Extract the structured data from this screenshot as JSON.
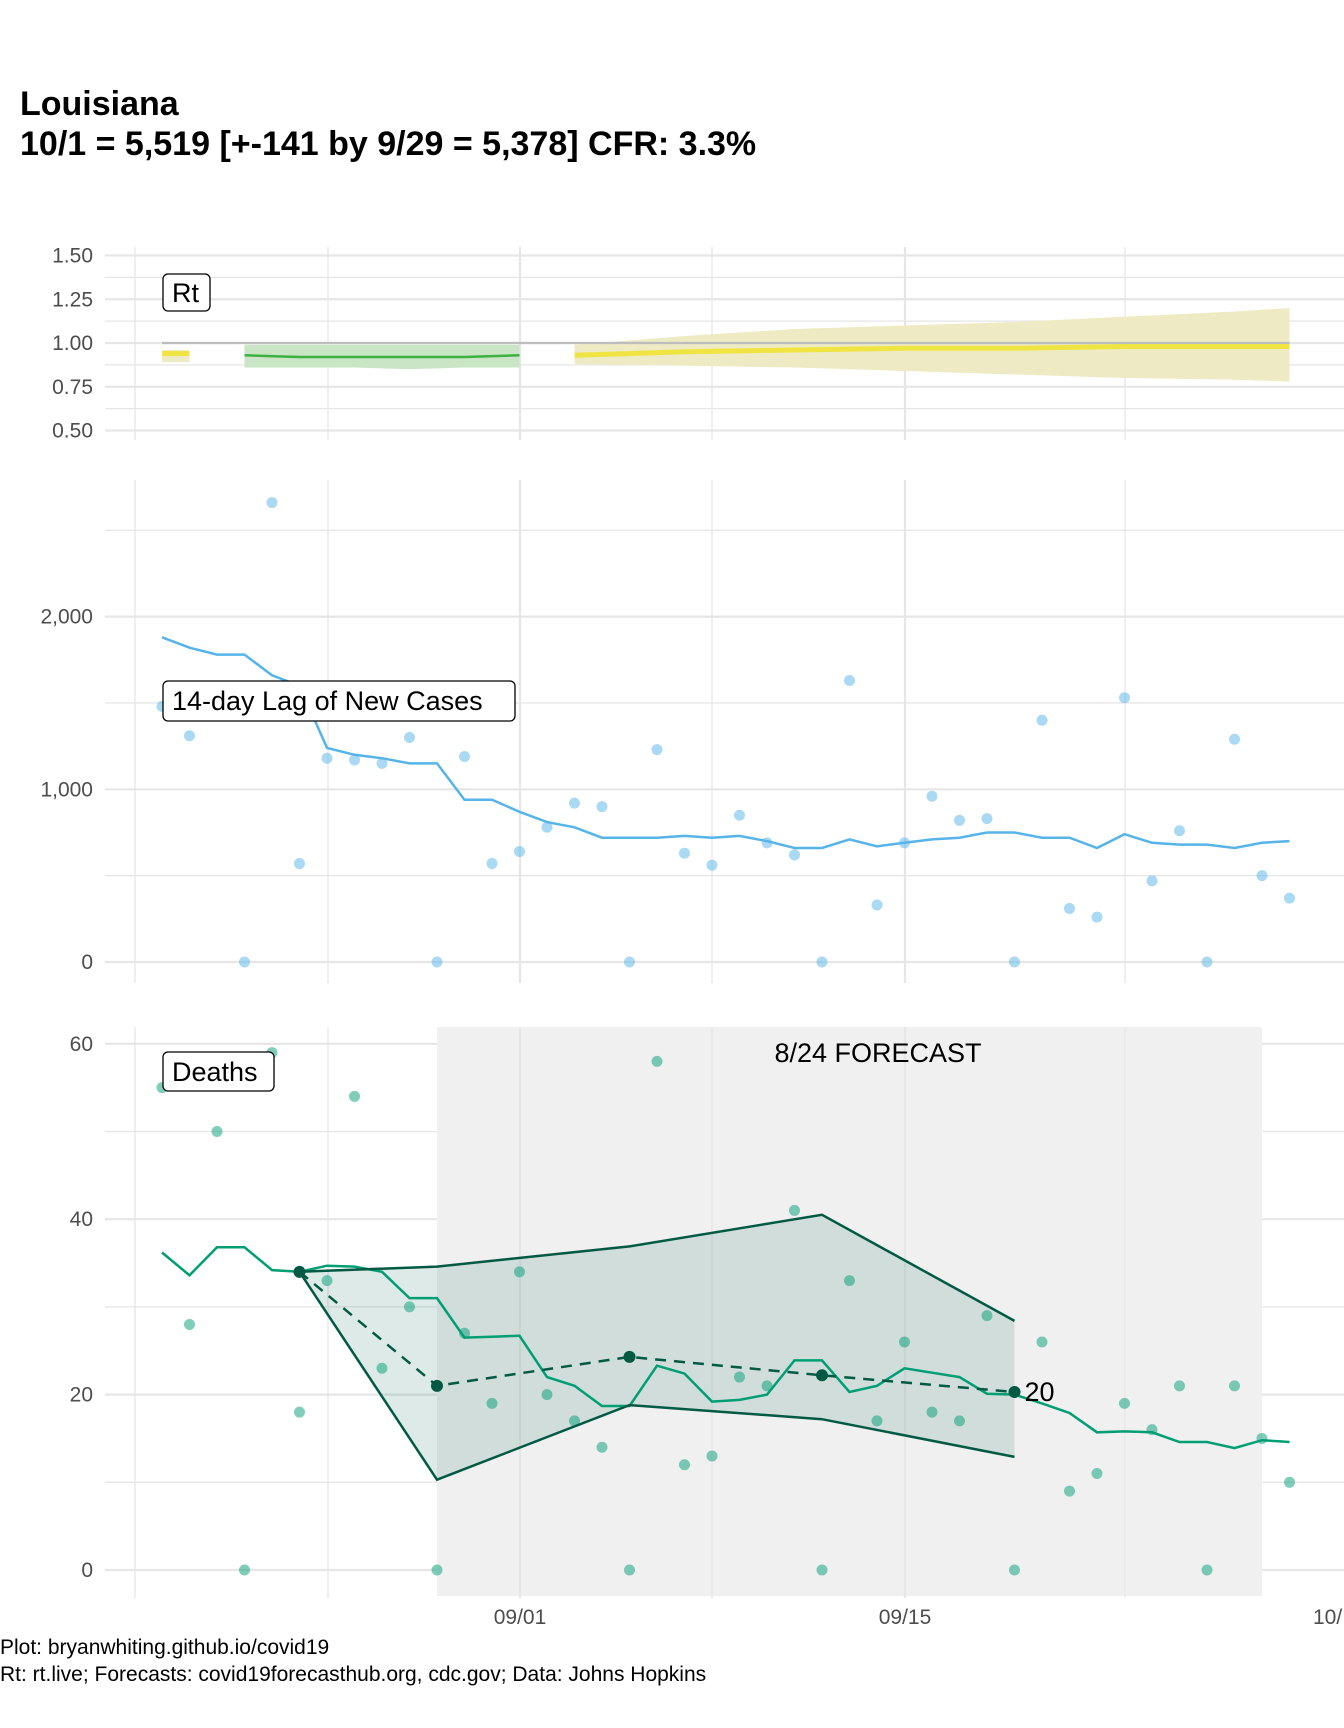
{
  "title_line1": "Louisiana",
  "title_line2": "10/1 = 5,519 [+-141 by 9/29 = 5,378] CFR: 3.3%",
  "caption_line1": "Plot: bryanwhiting.github.io/covid19",
  "caption_line2": "Rt: rt.live; Forecasts: covid19forecasthub.org, cdc.gov; Data: Johns Hopkins",
  "colors": {
    "rt_yellow": "#f0e442",
    "rt_band_yellow": "#eeeac4",
    "rt_green": "#3cb043",
    "rt_band_green": "#c9e5c6",
    "cases_blue": "#56b4e9",
    "deaths_green": "#009e73",
    "forecast_dark": "#005a43",
    "forecast_bg": "#f0f0f0",
    "grid": "#e6e6e6"
  },
  "chart_data": [
    {
      "type": "area",
      "label": "Rt",
      "yticks": [
        "1.50",
        "1.25",
        "1.00",
        "0.75",
        "0.50"
      ],
      "ylim": [
        0.5,
        1.5
      ],
      "reference_line": 1.0,
      "segments": [
        {
          "color": "yellow",
          "x": [
            "08/19",
            "08/20"
          ],
          "mean": [
            0.94,
            0.94
          ],
          "lower": [
            0.89,
            0.89
          ],
          "upper": [
            0.96,
            0.96
          ]
        },
        {
          "color": "green",
          "x": [
            "08/22",
            "08/24",
            "08/26",
            "08/28",
            "08/30",
            "09/01"
          ],
          "mean": [
            0.93,
            0.92,
            0.92,
            0.92,
            0.92,
            0.93
          ],
          "lower": [
            0.86,
            0.86,
            0.86,
            0.85,
            0.86,
            0.86
          ],
          "upper": [
            0.99,
            0.99,
            0.99,
            0.99,
            0.99,
            0.99
          ]
        },
        {
          "color": "yellow",
          "x": [
            "09/03",
            "09/07",
            "09/11",
            "09/15",
            "09/19",
            "09/23",
            "09/27",
            "09/29"
          ],
          "mean": [
            0.93,
            0.95,
            0.96,
            0.97,
            0.97,
            0.98,
            0.98,
            0.98
          ],
          "lower": [
            0.88,
            0.87,
            0.86,
            0.84,
            0.82,
            0.8,
            0.79,
            0.78
          ],
          "upper": [
            0.99,
            1.04,
            1.08,
            1.1,
            1.12,
            1.15,
            1.18,
            1.2
          ]
        }
      ]
    },
    {
      "type": "scatter",
      "label": "14-day Lag of New Cases",
      "yticks": [
        "2,000",
        "1,000",
        "0"
      ],
      "ylim": [
        0,
        2700
      ],
      "x": [
        "08/19",
        "08/20",
        "08/21",
        "08/22",
        "08/23",
        "08/24",
        "08/25",
        "08/26",
        "08/27",
        "08/28",
        "08/29",
        "08/30",
        "08/31",
        "09/01",
        "09/02",
        "09/03",
        "09/04",
        "09/05",
        "09/06",
        "09/07",
        "09/08",
        "09/09",
        "09/10",
        "09/11",
        "09/12",
        "09/13",
        "09/14",
        "09/15",
        "09/16",
        "09/17",
        "09/18",
        "09/19",
        "09/20",
        "09/21",
        "09/22",
        "09/23",
        "09/24",
        "09/25",
        "09/26",
        "09/27",
        "09/28",
        "09/29"
      ],
      "points": [
        1480,
        1310,
        0,
        2660,
        570,
        1180,
        1170,
        1150,
        1300,
        0,
        1190,
        570,
        640,
        780,
        920,
        900,
        0,
        1230,
        630,
        560,
        850,
        690,
        620,
        0,
        1630,
        330,
        690,
        960,
        820,
        830,
        0,
        1400,
        310,
        260,
        1530,
        470,
        760,
        0,
        1290,
        500,
        370
      ],
      "point_x_index": [
        0,
        1,
        3,
        4,
        5,
        6,
        7,
        8,
        9,
        10,
        11,
        12,
        13,
        14,
        15,
        16,
        17,
        18,
        19,
        20,
        21,
        22,
        23,
        24,
        25,
        26,
        27,
        28,
        29,
        30,
        31,
        32,
        33,
        34,
        35,
        36,
        37,
        38,
        39,
        40,
        41
      ],
      "trend": [
        1880,
        1820,
        1780,
        1780,
        1660,
        1600,
        1240,
        1200,
        1180,
        1150,
        1150,
        940,
        940,
        870,
        810,
        780,
        720,
        720,
        720,
        730,
        720,
        730,
        700,
        660,
        660,
        710,
        670,
        690,
        710,
        720,
        750,
        750,
        720,
        720,
        660,
        740,
        690,
        680,
        680,
        660,
        690,
        700
      ]
    },
    {
      "type": "line",
      "label": "Deaths",
      "yticks": [
        "60",
        "40",
        "20",
        "0"
      ],
      "ylim": [
        -3,
        62
      ],
      "annotation": "8/24 FORECAST",
      "forecast_end_label": "20",
      "x": [
        "08/19",
        "08/20",
        "08/21",
        "08/22",
        "08/23",
        "08/24",
        "08/25",
        "08/26",
        "08/27",
        "08/28",
        "08/29",
        "08/30",
        "08/31",
        "09/01",
        "09/02",
        "09/03",
        "09/04",
        "09/05",
        "09/06",
        "09/07",
        "09/08",
        "09/09",
        "09/10",
        "09/11",
        "09/12",
        "09/13",
        "09/14",
        "09/15",
        "09/16",
        "09/17",
        "09/18",
        "09/19",
        "09/20",
        "09/21",
        "09/22",
        "09/23",
        "09/24",
        "09/25",
        "09/26",
        "09/27",
        "09/28",
        "09/29"
      ],
      "points": [
        55,
        28,
        50,
        0,
        59,
        18,
        33,
        54,
        23,
        30,
        0,
        27,
        19,
        34,
        20,
        17,
        14,
        0,
        58,
        12,
        13,
        22,
        21,
        41,
        0,
        33,
        17,
        26,
        18,
        17,
        29,
        0,
        26,
        9,
        11,
        19,
        16,
        21,
        0,
        21,
        15,
        10
      ],
      "trend": [
        36.2,
        33.6,
        36.8,
        36.8,
        34.2,
        34.0,
        34.7,
        34.6,
        34.0,
        31.0,
        31.0,
        26.5,
        26.6,
        26.7,
        22.0,
        21.0,
        18.7,
        18.7,
        23.3,
        22.4,
        19.2,
        19.4,
        20.0,
        23.9,
        23.9,
        20.3,
        21.0,
        23.0,
        22.5,
        22.0,
        20.1,
        20.0,
        19.0,
        17.9,
        15.7,
        15.8,
        15.7,
        14.6,
        14.6,
        13.9,
        14.8,
        14.6
      ],
      "forecast": {
        "x": [
          "08/24",
          "08/29",
          "09/05",
          "09/12",
          "09/19"
        ],
        "point": [
          34.0,
          21.0,
          24.3,
          22.2,
          20.3
        ],
        "lower": [
          34.0,
          10.3,
          18.8,
          17.2,
          12.9
        ],
        "upper": [
          34.0,
          34.6,
          36.9,
          40.5,
          28.4
        ],
        "shade_x": [
          "08/29",
          "09/28"
        ]
      }
    }
  ],
  "x_axis_ticks": [
    "09/01",
    "09/15",
    "10/"
  ]
}
